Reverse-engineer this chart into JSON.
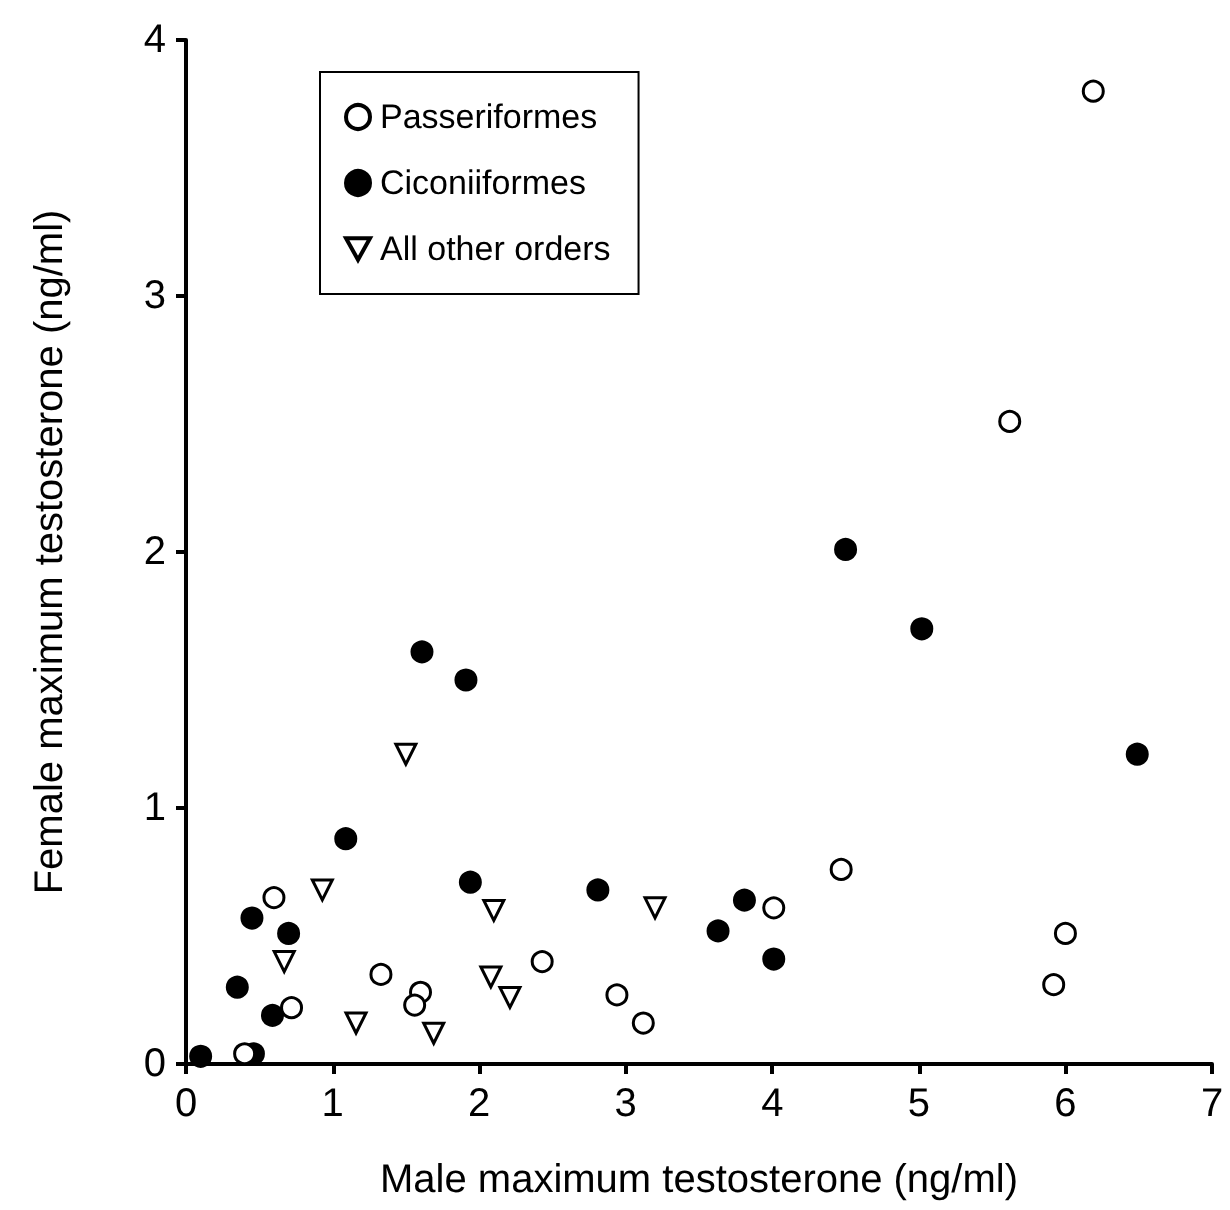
{
  "chart_data": {
    "type": "scatter",
    "xlabel": "Male maximum testosterone (ng/ml)",
    "ylabel": "Female maximum testosterone (ng/ml)",
    "xlim": [
      0,
      7
    ],
    "xticks": [
      0,
      1,
      2,
      3,
      4,
      5,
      6,
      7
    ],
    "ylim": [
      0,
      4
    ],
    "yticks": [
      0,
      1,
      2,
      3,
      4
    ],
    "grid": false,
    "legend": "top left",
    "series": [
      {
        "name": "Passeriformes",
        "color": "#ffffff",
        "marker": "circle",
        "x": [
          6.19,
          5.62,
          0.6,
          0.72,
          0.4,
          1.33,
          1.6,
          1.56,
          2.43,
          2.94,
          3.12,
          4.01,
          4.47,
          5.92,
          6.0
        ],
        "values": [
          3.8,
          2.51,
          0.65,
          0.22,
          0.04,
          0.35,
          0.28,
          0.23,
          0.4,
          0.27,
          0.16,
          0.61,
          0.76,
          0.31,
          0.51
        ]
      },
      {
        "name": "Ciconiiformes",
        "color": "#000000",
        "marker": "circle",
        "x": [
          4.5,
          5.02,
          6.49,
          2.81,
          3.81,
          3.63,
          4.01,
          1.61,
          1.91,
          1.09,
          1.94,
          0.45,
          0.7,
          0.35,
          0.59,
          0.46,
          0.1
        ],
        "values": [
          2.01,
          1.7,
          1.21,
          0.68,
          0.64,
          0.52,
          0.41,
          1.61,
          1.5,
          0.88,
          0.71,
          0.57,
          0.51,
          0.3,
          0.19,
          0.04,
          0.03
        ]
      },
      {
        "name": "All other orders",
        "color": "#ffffff",
        "marker": "triangle",
        "x": [
          1.5,
          0.93,
          2.1,
          0.67,
          1.16,
          1.69,
          2.08,
          2.21,
          3.2
        ],
        "values": [
          1.21,
          0.68,
          0.6,
          0.4,
          0.16,
          0.12,
          0.34,
          0.26,
          0.61
        ]
      }
    ]
  }
}
